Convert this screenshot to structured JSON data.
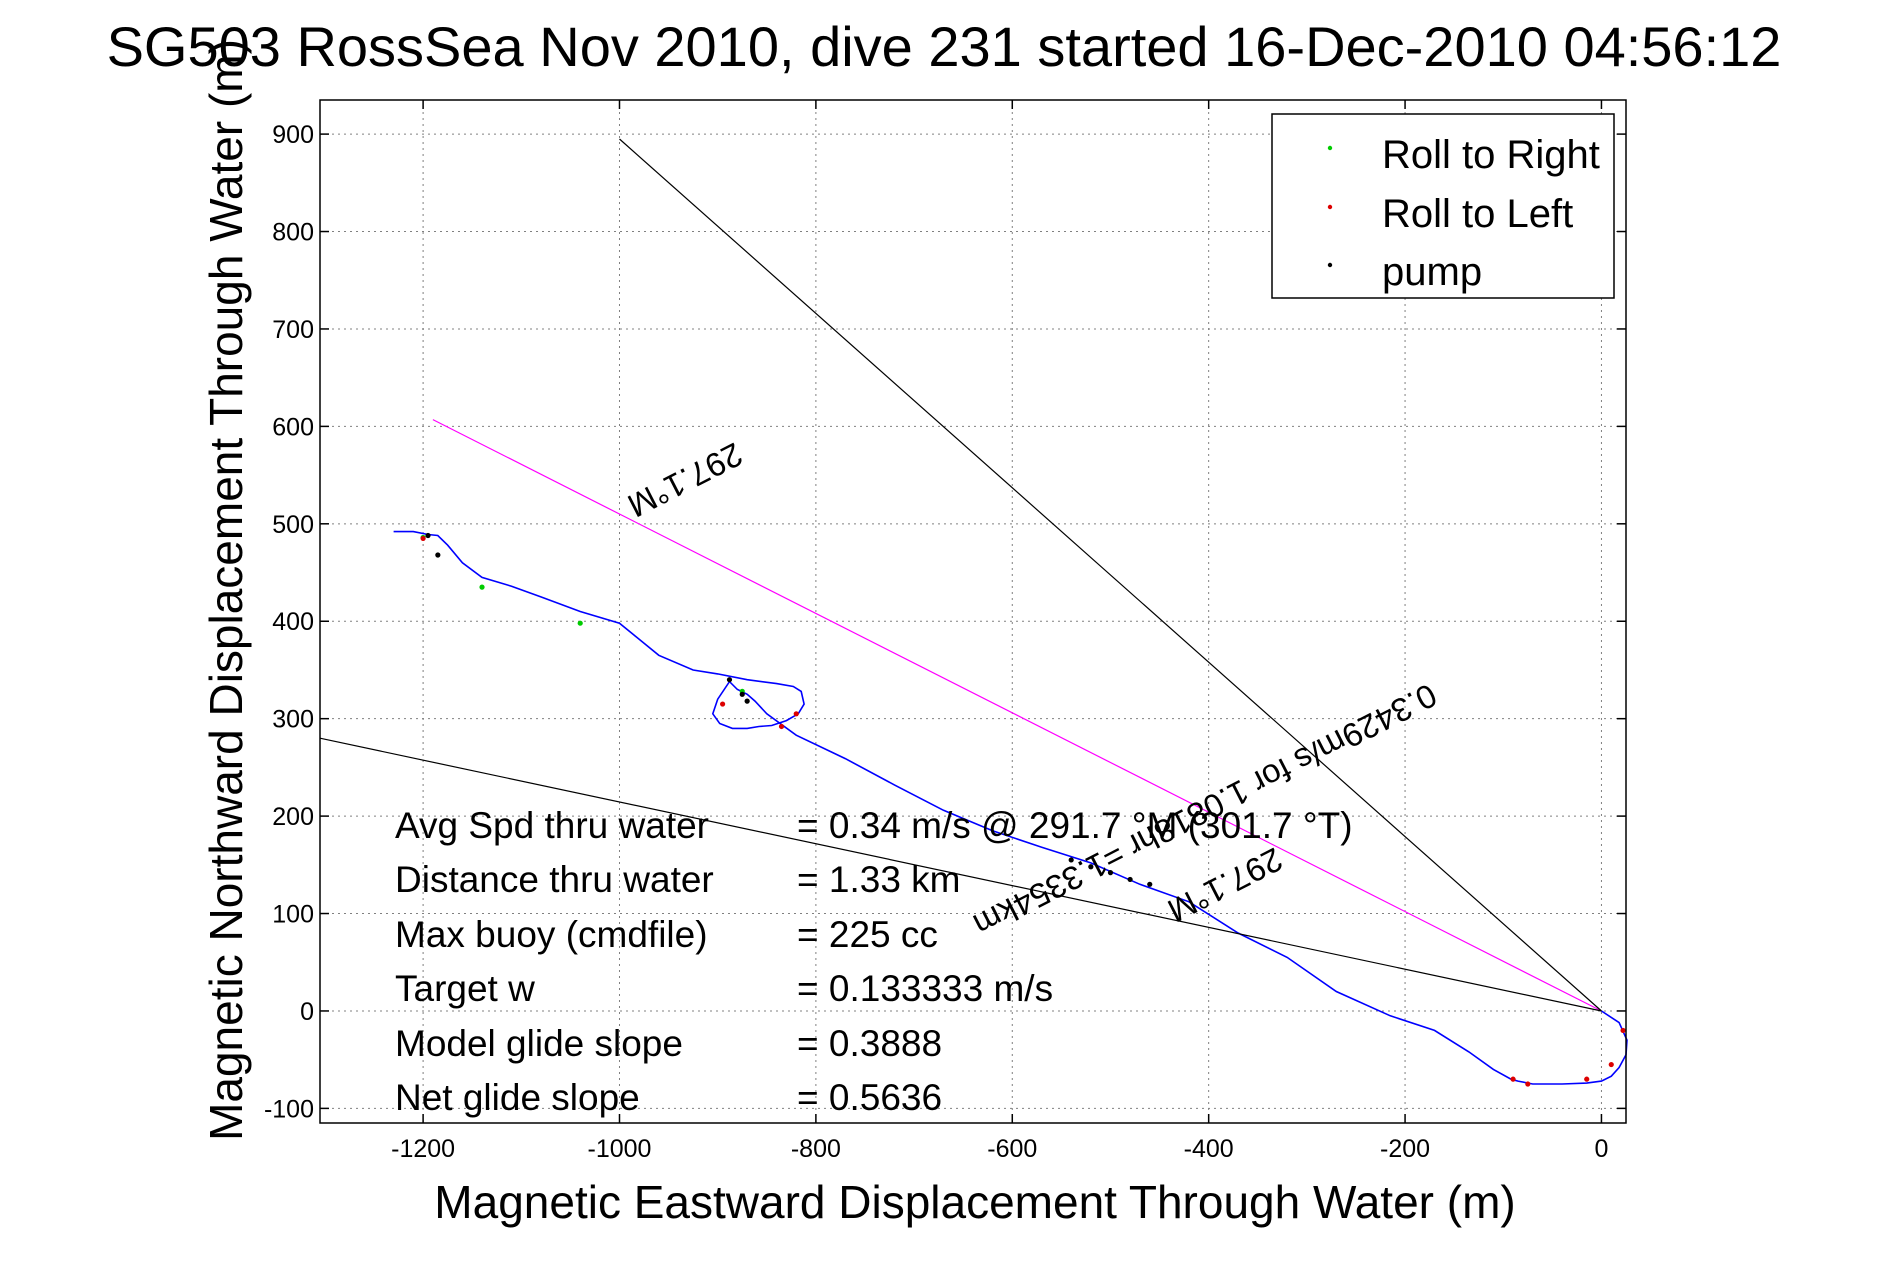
{
  "chart_data": {
    "type": "line",
    "title": "SG503 RossSea Nov 2010, dive 231 started 16-Dec-2010 04:56:12",
    "xlabel": "Magnetic Eastward Displacement Through Water (m)",
    "ylabel": "Magnetic Northward Displacement Through Water (m)",
    "xlim": [
      -1305,
      25
    ],
    "ylim": [
      -115,
      935
    ],
    "x_ticks": [
      -1200,
      -1000,
      -800,
      -600,
      -400,
      -200,
      0
    ],
    "y_ticks": [
      900,
      800,
      700,
      600,
      500,
      400,
      300,
      200,
      100,
      0,
      -100
    ],
    "x_tick_labels": [
      "-1200",
      "-1000",
      "-800",
      "-600",
      "-400",
      "-200",
      "0"
    ],
    "y_tick_labels": [
      "900",
      "800",
      "700",
      "600",
      "500",
      "400",
      "300",
      "200",
      "100",
      "0",
      "-100"
    ],
    "grid": true,
    "legend_position": "top-right",
    "legend": [
      {
        "label": "Roll to Right",
        "color": "#00cc00"
      },
      {
        "label": "Roll to Left",
        "color": "#dd0000"
      },
      {
        "label": "pump",
        "color": "#000000"
      }
    ],
    "series": [
      {
        "color": "#0000ff",
        "x": [
          0,
          18,
          26,
          25,
          18,
          10,
          0,
          -15,
          -40,
          -70,
          -85,
          -92,
          -110,
          -135,
          -170,
          -215,
          -270,
          -320,
          -370,
          -420,
          -470,
          -520,
          -570,
          -620,
          -670,
          -720,
          -770,
          -820,
          -850,
          -862,
          -870,
          -880,
          -888,
          -900,
          -905,
          -898,
          -885,
          -870,
          -858,
          -845,
          -830,
          -818,
          -812,
          -815,
          -823,
          -840,
          -870,
          -900,
          -925,
          -960,
          -1000,
          -1040,
          -1080,
          -1110,
          -1140,
          -1160,
          -1175,
          -1185,
          -1195,
          -1210,
          -1230
        ],
        "y": [
          0,
          -12,
          -30,
          -45,
          -58,
          -67,
          -72,
          -74,
          -75,
          -75,
          -72,
          -70,
          -60,
          -42,
          -20,
          -5,
          20,
          55,
          80,
          112,
          130,
          152,
          168,
          185,
          206,
          232,
          259,
          283,
          305,
          318,
          325,
          330,
          338,
          320,
          305,
          295,
          290,
          290,
          292,
          293,
          298,
          305,
          315,
          328,
          333,
          336,
          340,
          346,
          350,
          365,
          398,
          410,
          425,
          436,
          445,
          460,
          478,
          488,
          489,
          492,
          492
        ]
      },
      {
        "color": "#ff00ff",
        "x": [
          0,
          -1190
        ],
        "y": [
          0,
          607
        ]
      },
      {
        "color": "#000000",
        "x": [
          0,
          -1000
        ],
        "y": [
          0,
          895
        ]
      },
      {
        "color": "#000000",
        "x": [
          0,
          -1305
        ],
        "y": [
          0,
          280
        ]
      }
    ],
    "markers": {
      "roll_right": {
        "x": [
          -1140,
          -1040,
          -875,
          -1200
        ],
        "y": [
          435,
          398,
          328,
          486
        ]
      },
      "roll_left": {
        "x": [
          -1200,
          -895,
          -835,
          -820,
          -90,
          -75,
          -15,
          10,
          22
        ],
        "y": [
          485,
          315,
          292,
          305,
          -70,
          -75,
          -70,
          -55,
          -20
        ]
      },
      "pump": {
        "x": [
          -1195,
          -1185,
          -888,
          -875,
          -870,
          -540,
          -520,
          -500,
          -480,
          -460
        ],
        "y": [
          488,
          468,
          340,
          325,
          318,
          155,
          148,
          142,
          135,
          130
        ]
      }
    },
    "annotations": [
      {
        "text": "297.1°M"
      },
      {
        "text": "0.3429m/s for 1.0818hr =1.3354km"
      },
      {
        "text": "297.1°M"
      }
    ]
  },
  "stats": [
    {
      "label": "Avg Spd thru water",
      "value": "=  0.34 m/s @ 291.7 °M (301.7 °T)"
    },
    {
      "label": "Distance thru water",
      "value": "=  1.33 km"
    },
    {
      "label": "Max buoy (cmdfile)",
      "value": "= 225 cc"
    },
    {
      "label": "Target w",
      "value": "= 0.133333 m/s"
    },
    {
      "label": "Model glide slope",
      "value": "= 0.3888"
    },
    {
      "label": "Net glide slope",
      "value": "= 0.5636"
    }
  ]
}
